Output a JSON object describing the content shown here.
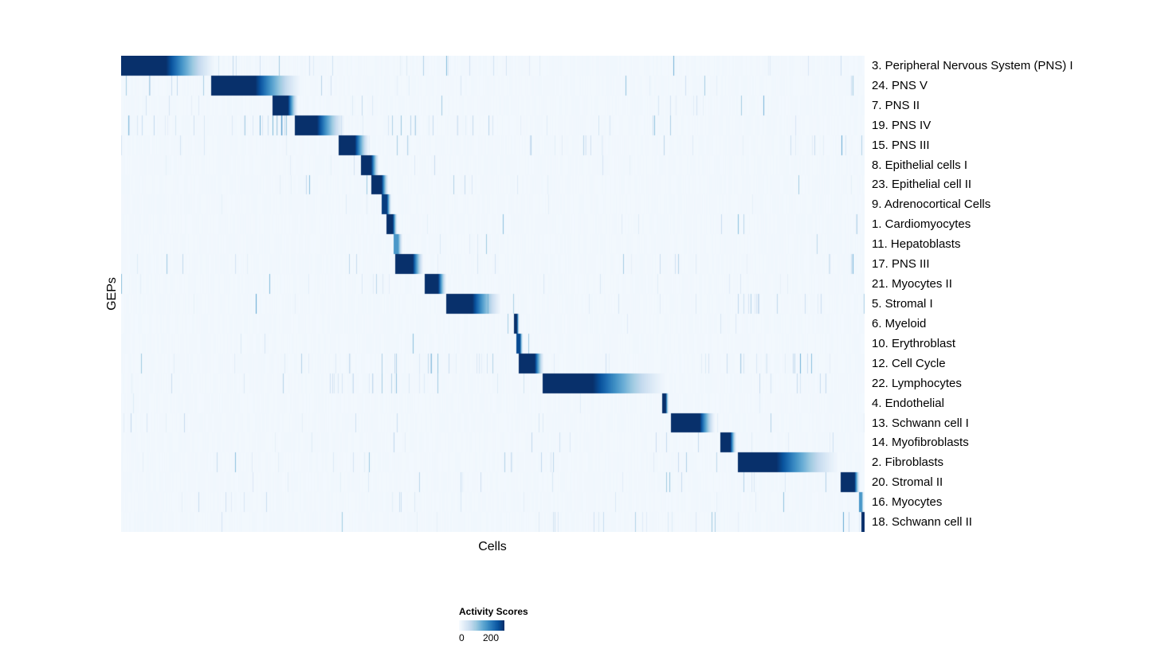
{
  "chart_data": {
    "type": "heatmap",
    "title": "",
    "xlabel": "Cells",
    "ylabel": "GEPs",
    "legend": {
      "title": "Activity Scores",
      "tick_labels": [
        "0",
        "200"
      ],
      "value_min": 0,
      "value_max": 200
    },
    "colorscale": {
      "name": "Blues",
      "stops": [
        "#f7fbff",
        "#deebf7",
        "#c6dbef",
        "#9ecae1",
        "#6baed6",
        "#4292c6",
        "#2171b5",
        "#08519c",
        "#08306b"
      ]
    },
    "grid": false,
    "layout": {
      "heatmap_width": 933,
      "heatmap_height": 598,
      "row_label_side": "right"
    },
    "rows": [
      {
        "label": "3. Peripheral Nervous System (PNS) I",
        "block": {
          "start": 0.0,
          "solid_end": 0.06,
          "fade_end": 0.125,
          "peak": 1.0
        },
        "noise": 0.5,
        "hot": [
          [
            0.06,
            0.2,
            0.3
          ]
        ]
      },
      {
        "label": "24. PNS V",
        "block": {
          "start": 0.121,
          "solid_end": 0.18,
          "fade_end": 0.24,
          "peak": 1.0
        },
        "noise": 0.45,
        "hot": [
          [
            0.0,
            0.12,
            0.3
          ]
        ]
      },
      {
        "label": "7. PNS II",
        "block": {
          "start": 0.203,
          "solid_end": 0.224,
          "fade_end": 0.237,
          "peak": 1.0
        },
        "noise": 0.3,
        "hot": [
          [
            0.72,
            0.8,
            0.35
          ]
        ]
      },
      {
        "label": "19. PNS IV",
        "block": {
          "start": 0.233,
          "solid_end": 0.263,
          "fade_end": 0.3,
          "peak": 1.0
        },
        "noise": 0.45,
        "hot": [
          [
            0.0,
            0.23,
            0.45
          ],
          [
            0.3,
            0.52,
            0.2
          ]
        ]
      },
      {
        "label": "15. PNS III",
        "block": {
          "start": 0.292,
          "solid_end": 0.314,
          "fade_end": 0.333,
          "peak": 1.0
        },
        "noise": 0.4,
        "hot": [
          [
            0.55,
            0.67,
            0.3
          ],
          [
            0.9,
            1.0,
            0.25
          ]
        ]
      },
      {
        "label": "8. Epithelial cells I",
        "block": {
          "start": 0.322,
          "solid_end": 0.336,
          "fade_end": 0.346,
          "peak": 1.0
        },
        "noise": 0.15,
        "hot": []
      },
      {
        "label": "23. Epithelial cell II",
        "block": {
          "start": 0.336,
          "solid_end": 0.35,
          "fade_end": 0.359,
          "peak": 1.0
        },
        "noise": 0.2,
        "hot": [
          [
            0.55,
            0.63,
            0.25
          ]
        ]
      },
      {
        "label": "9. Adrenocortical Cells",
        "block": {
          "start": 0.35,
          "solid_end": 0.357,
          "fade_end": 0.363,
          "peak": 0.95
        },
        "noise": 0.1,
        "hot": []
      },
      {
        "label": "1. Cardiomyocytes",
        "block": {
          "start": 0.356,
          "solid_end": 0.365,
          "fade_end": 0.371,
          "peak": 1.0
        },
        "noise": 0.12,
        "hot": [
          [
            0.97,
            1.0,
            0.3
          ]
        ]
      },
      {
        "label": "11. Hepatoblasts",
        "block": {
          "start": 0.366,
          "solid_end": 0.372,
          "fade_end": 0.378,
          "peak": 0.6
        },
        "noise": 0.1,
        "hot": []
      },
      {
        "label": "17. PNS III",
        "block": {
          "start": 0.368,
          "solid_end": 0.392,
          "fade_end": 0.406,
          "peak": 1.0
        },
        "noise": 0.35,
        "hot": [
          [
            0.0,
            0.005,
            0.9
          ]
        ]
      },
      {
        "label": "21. Myocytes II",
        "block": {
          "start": 0.408,
          "solid_end": 0.426,
          "fade_end": 0.437,
          "peak": 1.0
        },
        "noise": 0.25,
        "hot": [
          [
            0.99,
            1.0,
            0.6
          ]
        ]
      },
      {
        "label": "5. Stromal I",
        "block": {
          "start": 0.437,
          "solid_end": 0.472,
          "fade_end": 0.51,
          "peak": 1.0
        },
        "noise": 0.4,
        "hot": [
          [
            0.82,
            0.87,
            0.3
          ]
        ]
      },
      {
        "label": "6. Myeloid",
        "block": {
          "start": 0.528,
          "solid_end": 0.532,
          "fade_end": 0.535,
          "peak": 1.0
        },
        "noise": 0.1,
        "hot": []
      },
      {
        "label": "10. Erythroblast",
        "block": {
          "start": 0.531,
          "solid_end": 0.536,
          "fade_end": 0.54,
          "peak": 0.9
        },
        "noise": 0.12,
        "hot": []
      },
      {
        "label": "12. Cell Cycle",
        "block": {
          "start": 0.534,
          "solid_end": 0.556,
          "fade_end": 0.568,
          "peak": 1.0
        },
        "noise": 0.5,
        "hot": [
          [
            0.3,
            0.5,
            0.35
          ],
          [
            0.8,
            0.92,
            0.3
          ]
        ]
      },
      {
        "label": "22. Lymphocytes",
        "block": {
          "start": 0.566,
          "solid_end": 0.634,
          "fade_end": 0.73,
          "peak": 1.0
        },
        "noise": 0.45,
        "hot": [
          [
            0.28,
            0.42,
            0.3
          ]
        ]
      },
      {
        "label": "4. Endothelial",
        "block": {
          "start": 0.727,
          "solid_end": 0.732,
          "fade_end": 0.736,
          "peak": 1.0
        },
        "noise": 0.12,
        "hot": []
      },
      {
        "label": "13. Schwann cell I",
        "block": {
          "start": 0.739,
          "solid_end": 0.778,
          "fade_end": 0.798,
          "peak": 1.0
        },
        "noise": 0.35,
        "hot": [
          [
            0.0,
            0.1,
            0.25
          ]
        ]
      },
      {
        "label": "14. Myofibroblasts",
        "block": {
          "start": 0.805,
          "solid_end": 0.819,
          "fade_end": 0.827,
          "peak": 1.0
        },
        "noise": 0.2,
        "hot": []
      },
      {
        "label": "2. Fibroblasts",
        "block": {
          "start": 0.829,
          "solid_end": 0.881,
          "fade_end": 0.963,
          "peak": 1.0
        },
        "noise": 0.45,
        "hot": [
          [
            0.5,
            0.56,
            0.3
          ]
        ]
      },
      {
        "label": "20. Stromal II",
        "block": {
          "start": 0.967,
          "solid_end": 0.986,
          "fade_end": 0.993,
          "peak": 1.0
        },
        "noise": 0.3,
        "hot": [
          [
            0.74,
            0.8,
            0.2
          ]
        ]
      },
      {
        "label": "16. Myocytes",
        "block": {
          "start": 0.992,
          "solid_end": 0.996,
          "fade_end": 0.998,
          "peak": 0.6
        },
        "noise": 0.2,
        "hot": [
          [
            0.35,
            0.41,
            0.3
          ]
        ]
      },
      {
        "label": "18. Schwann cell II",
        "block": {
          "start": 0.995,
          "solid_end": 1.0,
          "fade_end": 1.0,
          "peak": 1.0
        },
        "noise": 0.35,
        "hot": [
          [
            0.74,
            0.8,
            0.35
          ]
        ]
      }
    ]
  }
}
